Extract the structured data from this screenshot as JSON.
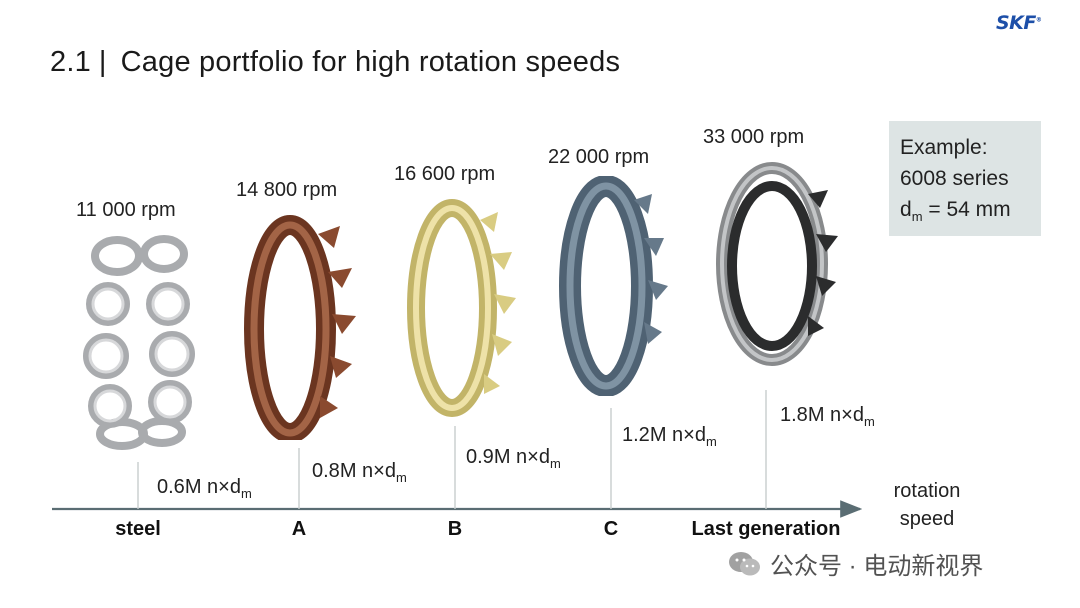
{
  "header": {
    "section_number": "2.1",
    "separator": "|",
    "title": "Cage portfolio for high rotation speeds",
    "brand": "SKF",
    "brand_mark": "®"
  },
  "cages": [
    {
      "rpm": "11 000 rpm",
      "category": "steel",
      "speed_value": "0.6",
      "color": "#b8babd"
    },
    {
      "rpm": "14 800 rpm",
      "category": "A",
      "speed_value": "0.8",
      "color": "#8a4a2f"
    },
    {
      "rpm": "16 600 rpm",
      "category": "B",
      "speed_value": "0.9",
      "color": "#d9cc82"
    },
    {
      "rpm": "22 000 rpm",
      "category": "C",
      "speed_value": "1.2",
      "color": "#66798a"
    },
    {
      "rpm": "33 000 rpm",
      "category": "Last generation",
      "speed_value": "1.8",
      "color": "#3a3b3c"
    }
  ],
  "speed_unit": {
    "prefix": "M n×d",
    "subscript": "m"
  },
  "example": {
    "line1": "Example:",
    "line2": "6008 series",
    "dm_symbol": "d",
    "dm_sub": "m",
    "dm_value": " = 54 mm"
  },
  "axis": {
    "label_line1": "rotation",
    "label_line2": "speed"
  },
  "watermark": {
    "text": "公众号 · 电动新视界"
  }
}
